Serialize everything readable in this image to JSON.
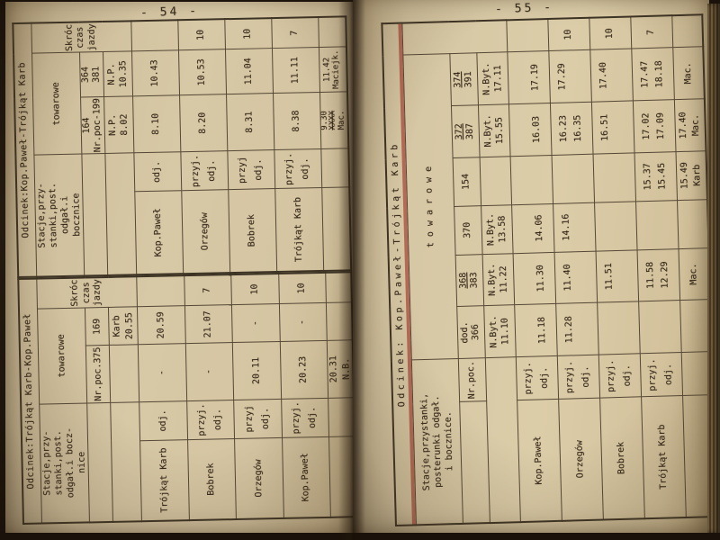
{
  "page_left": {
    "number_label": "- 54 -"
  },
  "page_right": {
    "number_label": "- 55 -"
  },
  "colors": {
    "red_underline": "#a64234",
    "page_paper": "#d7c8a6",
    "ink": "#2c1f11"
  },
  "tables": {
    "p54_left": {
      "title": "Odcinek:Trójkąt Karb-Kop.Paweł",
      "rows": [
        [
          {
            "t": "Odcinek:Trójkąt Karb-Kop.Paweł",
            "c": 5,
            "k": "ttl",
            "n": "table-title"
          }
        ],
        [
          {
            "t": "Stacje,przy-\nstanki,post.\nodgał.i bocz-\nnice",
            "c": 2,
            "k": "hdr",
            "n": "stations-header"
          },
          {
            "t": "towarowe",
            "c": 2,
            "n": "freight-header"
          },
          {
            "t": "Skróc\nczas\njazdy",
            "r": 3,
            "k": "sm",
            "n": "shortened-time-header"
          }
        ],
        [
          {
            "t": "",
            "c": 2
          },
          {
            "t": "Nr.poc.375",
            "k": "num",
            "n": "train-number"
          },
          {
            "t": "169",
            "k": "num",
            "n": "train-number"
          }
        ],
        [
          {
            "t": "",
            "c": 2
          },
          {
            "t": "",
            "k": "org"
          },
          {
            "t": "Karb\n20.55",
            "k": "org",
            "n": "origin-cell"
          }
        ],
        [
          {
            "t": "Trójkąt Karb",
            "k": "stn",
            "n": "station-name"
          },
          {
            "t": "odj.",
            "k": "po"
          },
          {
            "t": "-"
          },
          {
            "t": "20.59"
          },
          {
            "t": ""
          }
        ],
        [
          {
            "t": "Bobrek",
            "k": "stn",
            "n": "station-name"
          },
          {
            "t": "przyj.\nodj.",
            "k": "po"
          },
          {
            "t": "-"
          },
          {
            "t": "21.07"
          },
          {
            "t": "7"
          }
        ],
        [
          {
            "t": "Orzegów",
            "k": "stn",
            "n": "station-name"
          },
          {
            "t": "przyj\nodj.",
            "k": "po"
          },
          {
            "t": "20.11"
          },
          {
            "t": "-"
          },
          {
            "t": "10"
          }
        ],
        [
          {
            "t": "Kop.Paweł",
            "k": "stn",
            "n": "station-name"
          },
          {
            "t": "przyj.\nodj.",
            "k": "po"
          },
          {
            "t": "20.23"
          },
          {
            "t": "-"
          },
          {
            "t": "10"
          }
        ],
        [
          {
            "t": ""
          },
          {
            "t": ""
          },
          {
            "t": "20.31\nN.B.",
            "k": "org",
            "n": "destination-cell"
          },
          {
            "t": ""
          },
          {
            "t": ""
          }
        ]
      ]
    },
    "p54_right": {
      "title": "Odcinek:Kop.Paweł-Trójkąt Karb",
      "rows": [
        [
          {
            "t": "Odcinek:Kop.Paweł-Trójkąt Karb",
            "c": 5,
            "k": "ttl",
            "n": "table-title"
          }
        ],
        [
          {
            "t": "Stacje,przy-\nstanki,post.\nodgał.i\nbocznice",
            "c": 2,
            "k": "hdr",
            "n": "stations-header"
          },
          {
            "t": "towarowe",
            "c": 2,
            "n": "freight-header"
          },
          {
            "t": "Skróc\nczas\njazdy",
            "r": 3,
            "k": "sm",
            "n": "shortened-time-header"
          }
        ],
        [
          {
            "t": "",
            "c": 2
          },
          {
            "t": "164\nNr.poc-199",
            "k": "num",
            "n": "train-number"
          },
          {
            "t": "364\n381",
            "k": "num",
            "n": "train-number"
          }
        ],
        [
          {
            "t": "",
            "c": 2
          },
          {
            "t": "N.P.\n8.02",
            "k": "org",
            "n": "origin-cell"
          },
          {
            "t": "N.P.\n10.35",
            "k": "org",
            "n": "origin-cell"
          }
        ],
        [
          {
            "t": "Kop.Paweł",
            "k": "stn",
            "n": "station-name"
          },
          {
            "t": "odj.",
            "k": "po"
          },
          {
            "t": "8.10"
          },
          {
            "t": "10.43"
          },
          {
            "t": ""
          }
        ],
        [
          {
            "t": "Orzegów",
            "k": "stn",
            "n": "station-name"
          },
          {
            "t": "przyj.\nodj.",
            "k": "po"
          },
          {
            "t": "8.20"
          },
          {
            "t": "10.53"
          },
          {
            "t": "10"
          }
        ],
        [
          {
            "t": "Bobrek",
            "k": "stn",
            "n": "station-name"
          },
          {
            "t": "przyj\nodj.",
            "k": "po"
          },
          {
            "t": "8.31"
          },
          {
            "t": "11.04"
          },
          {
            "t": "10"
          }
        ],
        [
          {
            "t": "Trójkąt Karb",
            "k": "stn",
            "n": "station-name"
          },
          {
            "t": "przyj.\nodj.",
            "k": "po"
          },
          {
            "t": "8.38"
          },
          {
            "t": "11.11"
          },
          {
            "t": "7"
          }
        ],
        [
          {
            "t": ""
          },
          {
            "t": ""
          },
          {
            "t": "9.30\nXXXX\nMac.",
            "st": 1,
            "k": "tight",
            "n": "destination-cell"
          },
          {
            "t": "11.42\nMaciejk.",
            "k": "tight",
            "n": "destination-cell"
          },
          {
            "t": ""
          }
        ]
      ]
    },
    "p55": {
      "title": "Odcinek: Kop.Paweł-Trójkąt Karb",
      "rows": [
        [
          {
            "t": "Odcinek: Kop.Paweł-Trójkąt Karb",
            "c": 9,
            "k": "ttl ttl55",
            "n": "table-title"
          }
        ],
        [
          {
            "t": "Stacje,przystanki,\nposterunki odgał.\ni bocznice.",
            "c": 2,
            "k": "hdr",
            "n": "stations-header"
          },
          {
            "t": "t o w a r o w e",
            "c": 6,
            "n": "freight-header"
          },
          {
            "t": "",
            "r": 3
          }
        ],
        [
          {
            "t": ""
          },
          {
            "t": "Nr.poc.",
            "k": "num",
            "n": "train-number-label"
          },
          {
            "t": "dod.\n366",
            "k": "num",
            "n": "train-number"
          },
          {
            "t": "368\n383",
            "k": "num",
            "ul": 0,
            "n": "train-number"
          },
          {
            "t": "370",
            "k": "num",
            "n": "train-number"
          },
          {
            "t": "154",
            "k": "num",
            "n": "train-number"
          },
          {
            "t": "372\n387",
            "k": "num",
            "ul": 0,
            "n": "train-number"
          },
          {
            "t": "374\n391",
            "k": "num",
            "ul": 0,
            "n": "train-number"
          }
        ],
        [
          {
            "t": "",
            "c": 2
          },
          {
            "t": "N.Byt.\n11.10",
            "k": "org",
            "n": "origin-cell"
          },
          {
            "t": "N.Byt.\n11.22",
            "k": "org",
            "n": "origin-cell"
          },
          {
            "t": "N.Byt.\n13.58",
            "k": "org",
            "n": "origin-cell"
          },
          {
            "t": ""
          },
          {
            "t": "N.Byt.\n15.55",
            "k": "org",
            "n": "origin-cell"
          },
          {
            "t": "N.Byt.\n17.11",
            "k": "org",
            "n": "origin-cell"
          }
        ],
        [
          {
            "t": "Kop.Paweł",
            "k": "stn",
            "n": "station-name"
          },
          {
            "t": "przyj.\nodj.",
            "k": "po"
          },
          {
            "t": "\n11.18"
          },
          {
            "t": "\n11.30"
          },
          {
            "t": "\n14.06"
          },
          {
            "t": ""
          },
          {
            "t": "\n16.03"
          },
          {
            "t": "\n17.19"
          },
          {
            "t": ""
          }
        ],
        [
          {
            "t": "Orzegów",
            "k": "stn",
            "n": "station-name"
          },
          {
            "t": "przyj.\nodj.",
            "k": "po"
          },
          {
            "t": "11.28\n"
          },
          {
            "t": "11.40\n"
          },
          {
            "t": "14.16\n"
          },
          {
            "t": ""
          },
          {
            "t": "16.23\n16.35"
          },
          {
            "t": "17.29\n"
          },
          {
            "t": "10"
          }
        ],
        [
          {
            "t": "Bobrek",
            "k": "stn",
            "n": "station-name"
          },
          {
            "t": "przyj.\nodj.",
            "k": "po"
          },
          {
            "t": ""
          },
          {
            "t": "11.51\n"
          },
          {
            "t": ""
          },
          {
            "t": ""
          },
          {
            "t": "16.51\n"
          },
          {
            "t": "17.40\n"
          },
          {
            "t": "10"
          }
        ],
        [
          {
            "t": "Trójkąt Karb",
            "k": "stn",
            "n": "station-name"
          },
          {
            "t": "przyj.\nodj.",
            "k": "po"
          },
          {
            "t": ""
          },
          {
            "t": "11.58\n12.29"
          },
          {
            "t": ""
          },
          {
            "t": "15.37\n15.45"
          },
          {
            "t": "17.02\n17.09"
          },
          {
            "t": "17.47\n18.18"
          },
          {
            "t": "7"
          }
        ],
        [
          {
            "t": ""
          },
          {
            "t": ""
          },
          {
            "t": ""
          },
          {
            "t": "Mac.",
            "n": "destination-cell"
          },
          {
            "t": ""
          },
          {
            "t": "15.49\nKarb",
            "k": "org",
            "n": "destination-cell"
          },
          {
            "t": "17.40\nMac.",
            "k": "org",
            "n": "destination-cell"
          },
          {
            "t": "Mac.",
            "n": "destination-cell"
          },
          {
            "t": ""
          }
        ]
      ]
    }
  }
}
